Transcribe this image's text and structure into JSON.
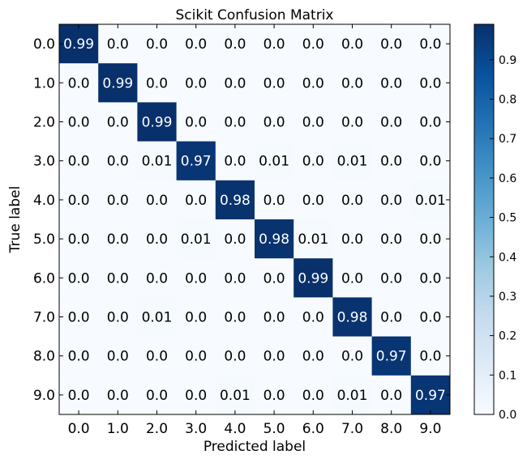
{
  "chart_data": {
    "type": "heatmap",
    "title": "Scikit Confusion Matrix",
    "xlabel": "Predicted label",
    "ylabel": "True label",
    "x_tick_labels": [
      "0.0",
      "1.0",
      "2.0",
      "3.0",
      "4.0",
      "5.0",
      "6.0",
      "7.0",
      "8.0",
      "9.0"
    ],
    "y_tick_labels": [
      "0.0",
      "1.0",
      "2.0",
      "3.0",
      "4.0",
      "5.0",
      "6.0",
      "7.0",
      "8.0",
      "9.0"
    ],
    "matrix": [
      [
        0.99,
        0.0,
        0.0,
        0.0,
        0.0,
        0.0,
        0.0,
        0.0,
        0.0,
        0.0
      ],
      [
        0.0,
        0.99,
        0.0,
        0.0,
        0.0,
        0.0,
        0.0,
        0.0,
        0.0,
        0.0
      ],
      [
        0.0,
        0.0,
        0.99,
        0.0,
        0.0,
        0.0,
        0.0,
        0.0,
        0.0,
        0.0
      ],
      [
        0.0,
        0.0,
        0.01,
        0.97,
        0.0,
        0.01,
        0.0,
        0.01,
        0.0,
        0.0
      ],
      [
        0.0,
        0.0,
        0.0,
        0.0,
        0.98,
        0.0,
        0.0,
        0.0,
        0.0,
        0.01
      ],
      [
        0.0,
        0.0,
        0.0,
        0.01,
        0.0,
        0.98,
        0.01,
        0.0,
        0.0,
        0.0
      ],
      [
        0.0,
        0.0,
        0.0,
        0.0,
        0.0,
        0.0,
        0.99,
        0.0,
        0.0,
        0.0
      ],
      [
        0.0,
        0.0,
        0.01,
        0.0,
        0.0,
        0.0,
        0.0,
        0.98,
        0.0,
        0.0
      ],
      [
        0.0,
        0.0,
        0.0,
        0.0,
        0.0,
        0.0,
        0.0,
        0.0,
        0.97,
        0.0
      ],
      [
        0.0,
        0.0,
        0.0,
        0.0,
        0.01,
        0.0,
        0.0,
        0.01,
        0.0,
        0.97
      ]
    ],
    "colorbar": {
      "range": [
        0.0,
        0.99
      ],
      "ticks": [
        "0.0",
        "0.1",
        "0.2",
        "0.3",
        "0.4",
        "0.5",
        "0.6",
        "0.7",
        "0.8",
        "0.9"
      ],
      "colormap": "Blues",
      "color_low": "#f7fbff",
      "color_high": "#08306b"
    },
    "grid": false,
    "legend": "colorbar-right"
  }
}
